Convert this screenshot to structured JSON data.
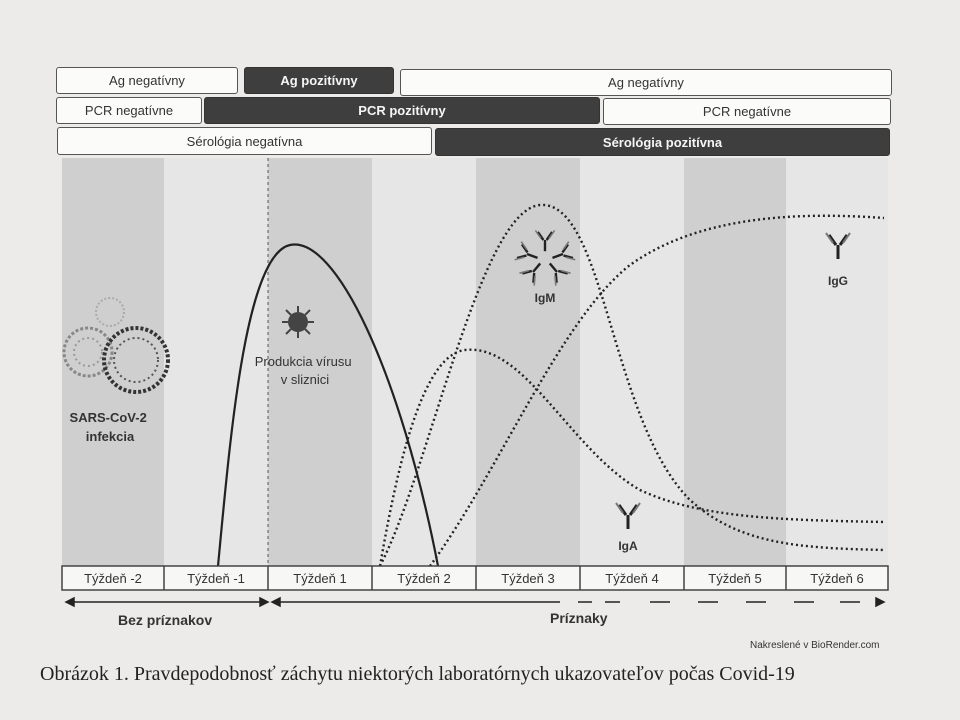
{
  "bands": {
    "ag": [
      {
        "label": "Ag negatívny",
        "dark": false
      },
      {
        "label": "Ag pozitívny",
        "dark": true
      },
      {
        "label": "Ag negatívny",
        "dark": false
      }
    ],
    "pcr": [
      {
        "label": "PCR negatívne",
        "dark": false
      },
      {
        "label": "PCR pozitívny",
        "dark": true
      },
      {
        "label": "PCR negatívne",
        "dark": false
      }
    ],
    "serology": [
      {
        "label": "Sérológia negatívna",
        "dark": false
      },
      {
        "label": "Sérológia pozitívna",
        "dark": true
      }
    ]
  },
  "weeks": [
    "Týždeň -2",
    "Týždeň -1",
    "Týždeň 1",
    "Týždeň 2",
    "Týždeň 3",
    "Týždeň 4",
    "Týždeň 5",
    "Týždeň 6"
  ],
  "labels": {
    "infection": [
      "SARS-CoV-2",
      "infekcia"
    ],
    "virus_production": [
      "Produkcia vírusu",
      "v sliznici"
    ],
    "igm": "IgM",
    "igg": "IgG",
    "iga": "IgA"
  },
  "phases": {
    "asymptomatic": "Bez príznakov",
    "symptomatic": "Príznaky"
  },
  "credit": "Nakreslené v BioRender.com",
  "caption": "Obrázok 1. Pravdepodobnosť záchytu niektorých laboratórnych ukazovateľov počas Covid-19",
  "colors": {
    "dark_band": "#3e3e3e",
    "shade_dark": "#cfcfcf",
    "shade_light": "#e6e6e6",
    "curve": "#222222"
  },
  "icons": [
    "virus-icon",
    "antibody-icon"
  ]
}
